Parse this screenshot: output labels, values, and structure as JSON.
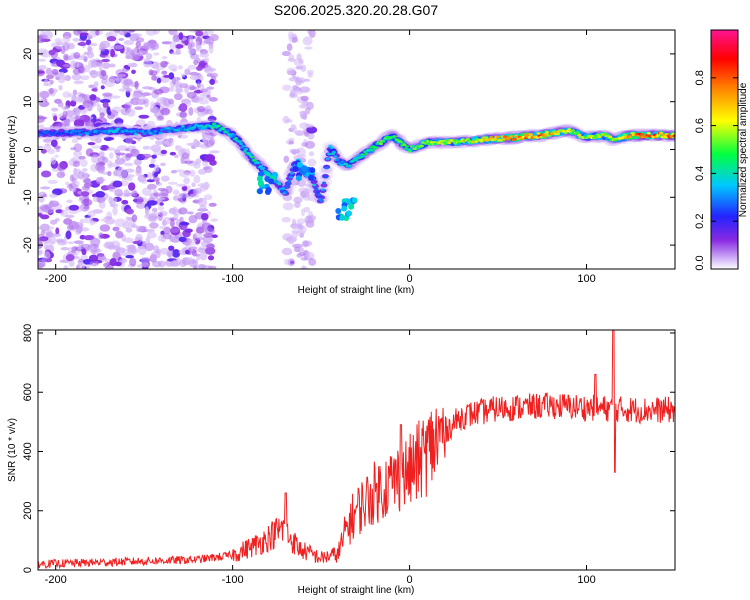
{
  "title": "S206.2025.320.20.28.G07",
  "chart_data": [
    {
      "type": "heatmap",
      "name": "spectrogram",
      "xlabel": "Height of straight line (km)",
      "ylabel": "Frequency (Hz)",
      "xlim": [
        -210,
        150
      ],
      "ylim": [
        -25,
        25
      ],
      "xticks": [
        -200,
        -100,
        0,
        100
      ],
      "yticks": [
        -20,
        -10,
        0,
        10,
        20
      ],
      "colorbar": {
        "label": "Normalized spectral amplitude",
        "range": [
          0,
          1
        ],
        "ticks": [
          0.0,
          0.2,
          0.4,
          0.6,
          0.8
        ],
        "tick_labels": [
          "0.0",
          "0.2",
          "0.4",
          "0.6",
          "0.8"
        ],
        "colors": [
          "#ffffff",
          "#c9a6f5",
          "#8a2be2",
          "#2323ff",
          "#00c8ff",
          "#00ff40",
          "#ffff00",
          "#ff8800",
          "#ff0000",
          "#ff1493"
        ]
      },
      "ridge": [
        {
          "x": -210,
          "f": 3.5,
          "a": 0.25
        },
        {
          "x": -185,
          "f": 3.5,
          "a": 0.3
        },
        {
          "x": -165,
          "f": 4.0,
          "a": 0.35
        },
        {
          "x": -150,
          "f": 3.5,
          "a": 0.3
        },
        {
          "x": -125,
          "f": 4.5,
          "a": 0.35
        },
        {
          "x": -110,
          "f": 5.0,
          "a": 0.45
        },
        {
          "x": -100,
          "f": 3.0,
          "a": 0.4
        },
        {
          "x": -95,
          "f": 1.0,
          "a": 0.35
        },
        {
          "x": -90,
          "f": -1.5,
          "a": 0.45
        },
        {
          "x": -80,
          "f": -5.0,
          "a": 0.35
        },
        {
          "x": -70,
          "f": -9.0,
          "a": 0.35
        },
        {
          "x": -65,
          "f": -3.0,
          "a": 0.3
        },
        {
          "x": -55,
          "f": -6.0,
          "a": 0.35
        },
        {
          "x": -50,
          "f": -11.0,
          "a": 0.3
        },
        {
          "x": -45,
          "f": 0.5,
          "a": 0.35
        },
        {
          "x": -40,
          "f": -2.5,
          "a": 0.35
        },
        {
          "x": -35,
          "f": -3.5,
          "a": 0.35
        },
        {
          "x": -30,
          "f": -2.0,
          "a": 0.4
        },
        {
          "x": -20,
          "f": 0.5,
          "a": 0.5
        },
        {
          "x": -10,
          "f": 3.0,
          "a": 0.5
        },
        {
          "x": 0,
          "f": 0.0,
          "a": 0.5
        },
        {
          "x": 10,
          "f": 1.5,
          "a": 0.55
        },
        {
          "x": 25,
          "f": 1.5,
          "a": 0.6
        },
        {
          "x": 40,
          "f": 2.0,
          "a": 0.6
        },
        {
          "x": 60,
          "f": 2.5,
          "a": 0.8
        },
        {
          "x": 75,
          "f": 3.0,
          "a": 0.75
        },
        {
          "x": 90,
          "f": 4.0,
          "a": 0.6
        },
        {
          "x": 100,
          "f": 2.5,
          "a": 0.55
        },
        {
          "x": 110,
          "f": 3.0,
          "a": 0.6
        },
        {
          "x": 115,
          "f": 2.0,
          "a": 0.55
        },
        {
          "x": 125,
          "f": 3.0,
          "a": 0.75
        },
        {
          "x": 150,
          "f": 3.0,
          "a": 0.8
        }
      ],
      "side_branches": [
        {
          "x": -80,
          "f": -7.0,
          "a": 0.35
        },
        {
          "x": -60,
          "f": -4.0,
          "a": 0.3
        },
        {
          "x": -36,
          "f": -12.5,
          "a": 0.35
        }
      ],
      "noise_region": {
        "x": [
          -210,
          -110
        ],
        "amplitude": [
          0.0,
          0.25
        ]
      },
      "noise_band": {
        "x": [
          -70,
          -55
        ],
        "amplitude": [
          0.0,
          0.15
        ]
      }
    },
    {
      "type": "line",
      "name": "snr",
      "xlabel": "Height of straight line (km)",
      "ylabel": "SNR (10 * v/v)",
      "xlim": [
        -210,
        150
      ],
      "ylim": [
        0,
        810
      ],
      "xticks": [
        -200,
        -100,
        0,
        100
      ],
      "yticks": [
        0,
        200,
        400,
        600,
        800
      ],
      "color": "#f02020",
      "trend": [
        {
          "x": -210,
          "y": 20
        },
        {
          "x": -180,
          "y": 25
        },
        {
          "x": -150,
          "y": 30
        },
        {
          "x": -120,
          "y": 35
        },
        {
          "x": -100,
          "y": 50
        },
        {
          "x": -85,
          "y": 90
        },
        {
          "x": -72,
          "y": 140
        },
        {
          "x": -62,
          "y": 70
        },
        {
          "x": -50,
          "y": 40
        },
        {
          "x": -40,
          "y": 55
        },
        {
          "x": -35,
          "y": 150
        },
        {
          "x": -30,
          "y": 200
        },
        {
          "x": -20,
          "y": 260
        },
        {
          "x": -10,
          "y": 300
        },
        {
          "x": 0,
          "y": 330
        },
        {
          "x": 10,
          "y": 400
        },
        {
          "x": 20,
          "y": 470
        },
        {
          "x": 30,
          "y": 520
        },
        {
          "x": 50,
          "y": 545
        },
        {
          "x": 80,
          "y": 555
        },
        {
          "x": 110,
          "y": 545
        },
        {
          "x": 130,
          "y": 540
        },
        {
          "x": 150,
          "y": 540
        }
      ],
      "spikes": [
        {
          "x": -70,
          "y": 260
        },
        {
          "x": -5,
          "y": 490
        },
        {
          "x": 105,
          "y": 660
        },
        {
          "x": 115,
          "y": 810
        },
        {
          "x": 116,
          "y": 330
        }
      ]
    }
  ]
}
